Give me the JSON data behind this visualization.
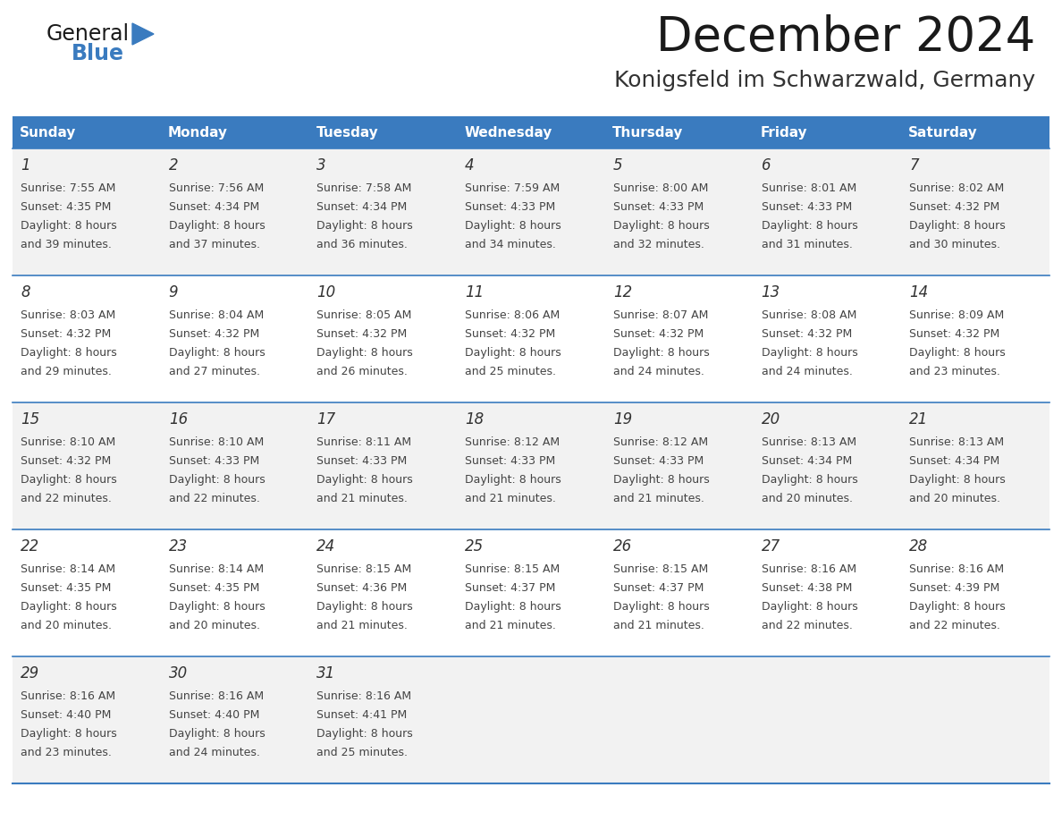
{
  "title": "December 2024",
  "subtitle": "Konigsfeld im Schwarzwald, Germany",
  "days_of_week": [
    "Sunday",
    "Monday",
    "Tuesday",
    "Wednesday",
    "Thursday",
    "Friday",
    "Saturday"
  ],
  "header_bg_color": "#3a7bbf",
  "header_text_color": "#ffffff",
  "cell_bg_color_odd": "#f2f2f2",
  "cell_bg_color_even": "#ffffff",
  "row_line_color": "#3a7bbf",
  "title_color": "#1a1a1a",
  "subtitle_color": "#333333",
  "cell_text_color": "#444444",
  "day_num_color": "#333333",
  "logo_general_color": "#1a1a1a",
  "logo_blue_color": "#3a7bbf",
  "weeks": [
    [
      {
        "day": 1,
        "sunrise": "7:55 AM",
        "sunset": "4:35 PM",
        "daylight_hours": 8,
        "daylight_minutes": 39
      },
      {
        "day": 2,
        "sunrise": "7:56 AM",
        "sunset": "4:34 PM",
        "daylight_hours": 8,
        "daylight_minutes": 37
      },
      {
        "day": 3,
        "sunrise": "7:58 AM",
        "sunset": "4:34 PM",
        "daylight_hours": 8,
        "daylight_minutes": 36
      },
      {
        "day": 4,
        "sunrise": "7:59 AM",
        "sunset": "4:33 PM",
        "daylight_hours": 8,
        "daylight_minutes": 34
      },
      {
        "day": 5,
        "sunrise": "8:00 AM",
        "sunset": "4:33 PM",
        "daylight_hours": 8,
        "daylight_minutes": 32
      },
      {
        "day": 6,
        "sunrise": "8:01 AM",
        "sunset": "4:33 PM",
        "daylight_hours": 8,
        "daylight_minutes": 31
      },
      {
        "day": 7,
        "sunrise": "8:02 AM",
        "sunset": "4:32 PM",
        "daylight_hours": 8,
        "daylight_minutes": 30
      }
    ],
    [
      {
        "day": 8,
        "sunrise": "8:03 AM",
        "sunset": "4:32 PM",
        "daylight_hours": 8,
        "daylight_minutes": 29
      },
      {
        "day": 9,
        "sunrise": "8:04 AM",
        "sunset": "4:32 PM",
        "daylight_hours": 8,
        "daylight_minutes": 27
      },
      {
        "day": 10,
        "sunrise": "8:05 AM",
        "sunset": "4:32 PM",
        "daylight_hours": 8,
        "daylight_minutes": 26
      },
      {
        "day": 11,
        "sunrise": "8:06 AM",
        "sunset": "4:32 PM",
        "daylight_hours": 8,
        "daylight_minutes": 25
      },
      {
        "day": 12,
        "sunrise": "8:07 AM",
        "sunset": "4:32 PM",
        "daylight_hours": 8,
        "daylight_minutes": 24
      },
      {
        "day": 13,
        "sunrise": "8:08 AM",
        "sunset": "4:32 PM",
        "daylight_hours": 8,
        "daylight_minutes": 24
      },
      {
        "day": 14,
        "sunrise": "8:09 AM",
        "sunset": "4:32 PM",
        "daylight_hours": 8,
        "daylight_minutes": 23
      }
    ],
    [
      {
        "day": 15,
        "sunrise": "8:10 AM",
        "sunset": "4:32 PM",
        "daylight_hours": 8,
        "daylight_minutes": 22
      },
      {
        "day": 16,
        "sunrise": "8:10 AM",
        "sunset": "4:33 PM",
        "daylight_hours": 8,
        "daylight_minutes": 22
      },
      {
        "day": 17,
        "sunrise": "8:11 AM",
        "sunset": "4:33 PM",
        "daylight_hours": 8,
        "daylight_minutes": 21
      },
      {
        "day": 18,
        "sunrise": "8:12 AM",
        "sunset": "4:33 PM",
        "daylight_hours": 8,
        "daylight_minutes": 21
      },
      {
        "day": 19,
        "sunrise": "8:12 AM",
        "sunset": "4:33 PM",
        "daylight_hours": 8,
        "daylight_minutes": 21
      },
      {
        "day": 20,
        "sunrise": "8:13 AM",
        "sunset": "4:34 PM",
        "daylight_hours": 8,
        "daylight_minutes": 20
      },
      {
        "day": 21,
        "sunrise": "8:13 AM",
        "sunset": "4:34 PM",
        "daylight_hours": 8,
        "daylight_minutes": 20
      }
    ],
    [
      {
        "day": 22,
        "sunrise": "8:14 AM",
        "sunset": "4:35 PM",
        "daylight_hours": 8,
        "daylight_minutes": 20
      },
      {
        "day": 23,
        "sunrise": "8:14 AM",
        "sunset": "4:35 PM",
        "daylight_hours": 8,
        "daylight_minutes": 20
      },
      {
        "day": 24,
        "sunrise": "8:15 AM",
        "sunset": "4:36 PM",
        "daylight_hours": 8,
        "daylight_minutes": 21
      },
      {
        "day": 25,
        "sunrise": "8:15 AM",
        "sunset": "4:37 PM",
        "daylight_hours": 8,
        "daylight_minutes": 21
      },
      {
        "day": 26,
        "sunrise": "8:15 AM",
        "sunset": "4:37 PM",
        "daylight_hours": 8,
        "daylight_minutes": 21
      },
      {
        "day": 27,
        "sunrise": "8:16 AM",
        "sunset": "4:38 PM",
        "daylight_hours": 8,
        "daylight_minutes": 22
      },
      {
        "day": 28,
        "sunrise": "8:16 AM",
        "sunset": "4:39 PM",
        "daylight_hours": 8,
        "daylight_minutes": 22
      }
    ],
    [
      {
        "day": 29,
        "sunrise": "8:16 AM",
        "sunset": "4:40 PM",
        "daylight_hours": 8,
        "daylight_minutes": 23
      },
      {
        "day": 30,
        "sunrise": "8:16 AM",
        "sunset": "4:40 PM",
        "daylight_hours": 8,
        "daylight_minutes": 24
      },
      {
        "day": 31,
        "sunrise": "8:16 AM",
        "sunset": "4:41 PM",
        "daylight_hours": 8,
        "daylight_minutes": 25
      },
      null,
      null,
      null,
      null
    ]
  ]
}
